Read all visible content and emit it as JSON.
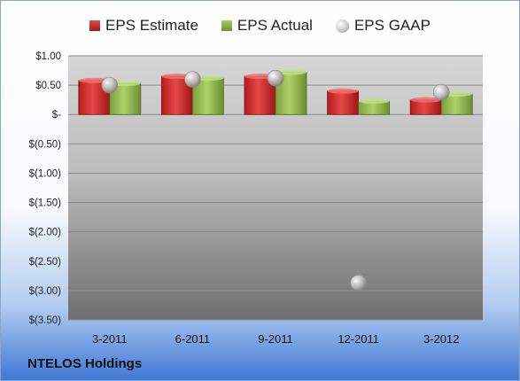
{
  "chart_data": {
    "type": "bar",
    "categories": [
      "3-2011",
      "6-2011",
      "9-2011",
      "12-2011",
      "3-2012"
    ],
    "series": [
      {
        "name": "EPS Estimate",
        "kind": "bar",
        "color": "#c62828",
        "values": [
          0.58,
          0.65,
          0.65,
          0.4,
          0.25
        ]
      },
      {
        "name": "EPS Actual",
        "kind": "bar",
        "color": "#8db04a",
        "values": [
          0.53,
          0.62,
          0.72,
          0.23,
          0.35
        ]
      },
      {
        "name": "EPS GAAP",
        "kind": "marker",
        "color": "#b8b8b8",
        "values": [
          0.5,
          0.6,
          0.62,
          -2.87,
          0.38
        ]
      }
    ],
    "y_ticks": [
      {
        "value": 1.0,
        "label": "$1.00"
      },
      {
        "value": 0.5,
        "label": "$0.50"
      },
      {
        "value": 0.0,
        "label": "$-"
      },
      {
        "value": -0.5,
        "label": "$(0.50)"
      },
      {
        "value": -1.0,
        "label": "$(1.00)"
      },
      {
        "value": -1.5,
        "label": "$(1.50)"
      },
      {
        "value": -2.0,
        "label": "$(2.00)"
      },
      {
        "value": -2.5,
        "label": "$(2.50)"
      },
      {
        "value": -3.0,
        "label": "$(3.00)"
      },
      {
        "value": -3.5,
        "label": "$(3.50)"
      }
    ],
    "ylim": [
      -3.5,
      1.0
    ],
    "grid": true,
    "legend_position": "top",
    "title": "",
    "xlabel": "",
    "ylabel": ""
  },
  "company_label": "NTELOS Holdings"
}
